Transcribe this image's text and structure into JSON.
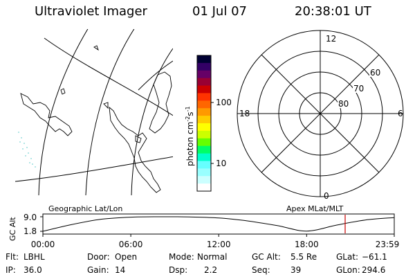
{
  "header": {
    "title": "Ultraviolet Imager",
    "date": "01 Jul 07",
    "time": "20:38:01 UT"
  },
  "colorbar": {
    "label": "photon cm",
    "label_exponent": "-2",
    "label_s": "s",
    "label_s_exponent": "-1",
    "ticks": [
      "100",
      "10"
    ],
    "colors": [
      "#000033",
      "#330066",
      "#660066",
      "#990033",
      "#cc0000",
      "#ff3300",
      "#ff6600",
      "#ff9900",
      "#ffcc00",
      "#ffff00",
      "#ccff00",
      "#66ff00",
      "#00ff66",
      "#00ffcc",
      "#66ffff",
      "#99ffff",
      "#ccffff",
      "#ffffff"
    ]
  },
  "left_panel": {
    "label": "Geographic Lat/Lon"
  },
  "right_panel": {
    "label": "Apex MLat/MLT",
    "mlt_labels": {
      "top": "12",
      "left": "18",
      "right": "6",
      "bottom": "0"
    },
    "lat_labels": [
      "60",
      "70",
      "80"
    ]
  },
  "chart_data": {
    "type": "line",
    "title": "",
    "ylabel": "GC Alt",
    "yticks": [
      "9.0",
      "1.8"
    ],
    "ylim": [
      1.8,
      9.0
    ],
    "xticks": [
      "00:00",
      "06:00",
      "12:00",
      "18:00",
      "23:59"
    ],
    "x_hours": [
      0,
      2,
      4,
      6,
      8,
      9.2,
      10,
      12,
      14,
      16,
      18,
      20,
      22,
      23.98
    ],
    "series": [
      {
        "values": [
          1.8,
          5.2,
          7.8,
          8.8,
          9.0,
          9.0,
          8.9,
          8.4,
          6.9,
          4.6,
          1.9,
          4.8,
          7.4,
          8.6
        ]
      }
    ],
    "current_hour": 20.63,
    "current_marker_color": "#cc0000"
  },
  "footer": {
    "rows": [
      [
        {
          "label": "Flt:",
          "value": "LBHL"
        },
        {
          "label": "Door:",
          "value": "Open"
        },
        {
          "label": "Mode:",
          "value": "Normal"
        },
        {
          "label": "GC Alt:",
          "value": "5.5 Re"
        },
        {
          "label": "GLat:",
          "value": "−61.1"
        }
      ],
      [
        {
          "label": "IP:",
          "value": "36.0"
        },
        {
          "label": "Gain:",
          "value": "14"
        },
        {
          "label": "Dsp:",
          "value": "2.2"
        },
        {
          "label": "Seq:",
          "value": "39"
        },
        {
          "label": "GLon:",
          "value": "294.6"
        }
      ]
    ]
  }
}
